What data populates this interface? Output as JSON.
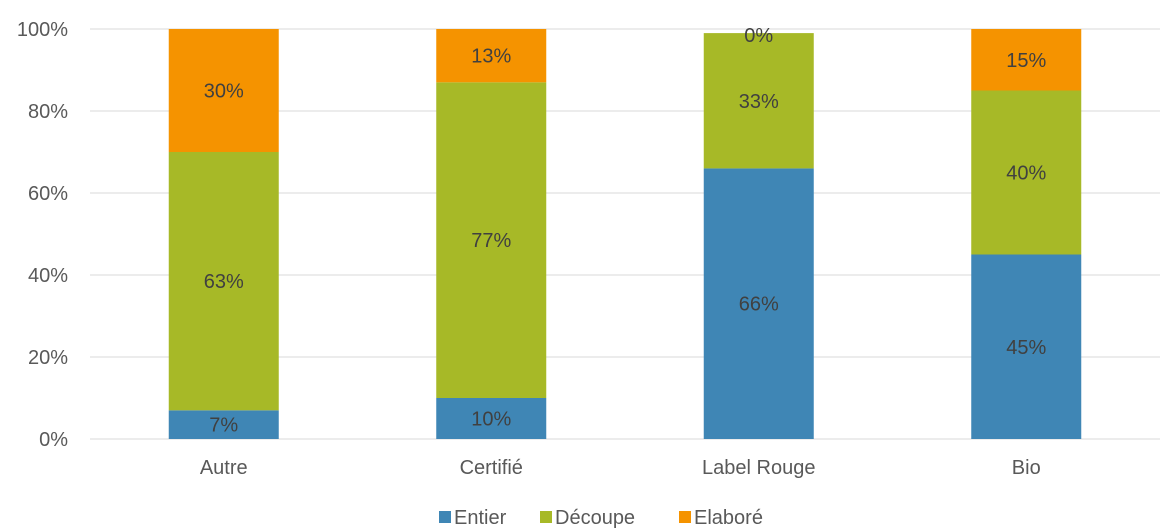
{
  "chart_data": {
    "type": "bar",
    "stacked": true,
    "categories": [
      "Autre",
      "Certifié",
      "Label Rouge",
      "Bio"
    ],
    "series": [
      {
        "name": "Entier",
        "color": "#3F86B5",
        "values": [
          7,
          10,
          66,
          45
        ],
        "labels": [
          "7%",
          "10%",
          "66%",
          "45%"
        ]
      },
      {
        "name": "Découpe",
        "color": "#A7B927",
        "values": [
          63,
          77,
          33,
          40
        ],
        "labels": [
          "63%",
          "77%",
          "33%",
          "40%"
        ]
      },
      {
        "name": "Elaboré",
        "color": "#F59300",
        "values": [
          30,
          13,
          0,
          15
        ],
        "labels": [
          "30%",
          "13%",
          "0%",
          "15%"
        ]
      }
    ],
    "ylim": [
      0,
      100
    ],
    "yticks": [
      0,
      20,
      40,
      60,
      80,
      100
    ],
    "ytick_labels": [
      "0%",
      "20%",
      "40%",
      "60%",
      "80%",
      "100%"
    ],
    "grid": true,
    "legend": "bottom",
    "title": "",
    "xlabel": "",
    "ylabel": ""
  }
}
